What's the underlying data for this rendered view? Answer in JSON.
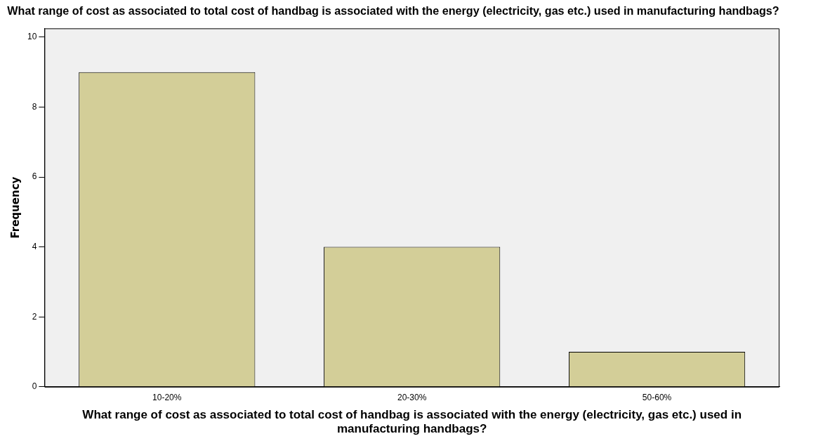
{
  "chart_data": {
    "type": "bar",
    "title": "What range of cost as associated to total cost of handbag is associated with the energy (electricity, gas etc.) used in manufacturing handbags?",
    "xlabel": "What range of cost as associated to total cost of handbag is associated with the energy (electricity, gas etc.) used in manufacturing handbags?",
    "ylabel": "Frequency",
    "categories": [
      "10-20%",
      "20-30%",
      "50-60%"
    ],
    "values": [
      9,
      4,
      1
    ],
    "color": "#d3ce98",
    "ylim": [
      0,
      10.25
    ],
    "yticks": [
      0,
      2,
      4,
      6,
      8,
      10
    ],
    "grid": false,
    "legend": false
  }
}
